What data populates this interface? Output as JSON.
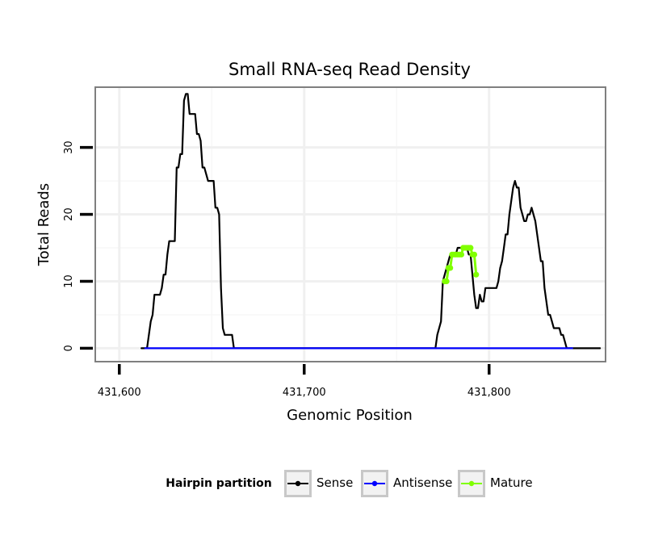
{
  "chart_data": {
    "type": "line",
    "title": "Small RNA-seq Read Density",
    "xlabel": "Genomic Position",
    "ylabel": "Total Reads",
    "xlim": [
      431587,
      431863
    ],
    "ylim": [
      -2,
      39
    ],
    "x_ticks": [
      431600,
      431700,
      431800
    ],
    "x_tick_labels": [
      "431,600",
      "431,700",
      "431,800"
    ],
    "y_ticks": [
      0,
      10,
      20,
      30
    ],
    "y_tick_labels": [
      "0",
      "10",
      "20",
      "30"
    ],
    "grid": true,
    "legend": {
      "title": "Hairpin partition",
      "position": "bottom",
      "entries": [
        {
          "label": "Sense",
          "color": "#000000"
        },
        {
          "label": "Antisense",
          "color": "#0000ff"
        },
        {
          "label": "Mature",
          "color": "#80ff00"
        }
      ]
    },
    "series": [
      {
        "name": "Sense",
        "color": "#000000",
        "x": [
          431612,
          431615,
          431616,
          431617,
          431618,
          431619,
          431620,
          431621,
          431622,
          431623,
          431624,
          431625,
          431626,
          431627,
          431628,
          431629,
          431630,
          431631,
          431632,
          431633,
          431634,
          431635,
          431636,
          431637,
          431638,
          431639,
          431640,
          431641,
          431642,
          431643,
          431644,
          431645,
          431646,
          431647,
          431648,
          431649,
          431650,
          431651,
          431652,
          431653,
          431654,
          431655,
          431656,
          431657,
          431658,
          431659,
          431660,
          431661,
          431662,
          431700,
          431771,
          431772,
          431773,
          431774,
          431775,
          431776,
          431777,
          431778,
          431779,
          431780,
          431781,
          431782,
          431783,
          431784,
          431785,
          431786,
          431787,
          431788,
          431789,
          431790,
          431791,
          431792,
          431793,
          431794,
          431795,
          431796,
          431797,
          431798,
          431799,
          431800,
          431801,
          431802,
          431803,
          431804,
          431805,
          431806,
          431807,
          431808,
          431809,
          431810,
          431811,
          431812,
          431813,
          431814,
          431815,
          431816,
          431817,
          431818,
          431819,
          431820,
          431821,
          431822,
          431823,
          431824,
          431825,
          431826,
          431827,
          431828,
          431829,
          431830,
          431831,
          431832,
          431833,
          431834,
          431835,
          431836,
          431837,
          431838,
          431839,
          431840,
          431841,
          431842,
          431843,
          431844,
          431845,
          431846,
          431860
        ],
        "values": [
          0,
          0,
          2,
          4,
          5,
          8,
          8,
          8,
          8,
          9,
          11,
          11,
          14,
          16,
          16,
          16,
          16,
          27,
          27,
          29,
          29,
          37,
          38,
          38,
          35,
          35,
          35,
          35,
          32,
          32,
          31,
          27,
          27,
          26,
          25,
          25,
          25,
          25,
          21,
          21,
          20,
          9,
          3,
          2,
          2,
          2,
          2,
          2,
          0,
          0,
          0,
          2,
          3,
          4,
          10,
          11,
          12,
          13,
          14,
          14,
          14,
          14,
          15,
          15,
          15,
          15,
          15,
          15,
          14,
          14,
          11,
          8,
          6,
          6,
          8,
          7,
          7,
          9,
          9,
          9,
          9,
          9,
          9,
          9,
          10,
          12,
          13,
          15,
          17,
          17,
          20,
          22,
          24,
          25,
          24,
          24,
          21,
          20,
          19,
          19,
          20,
          20,
          21,
          20,
          19,
          17,
          15,
          13,
          13,
          9,
          7,
          5,
          5,
          4,
          3,
          3,
          3,
          3,
          2,
          2,
          1,
          0,
          0,
          0,
          0,
          0,
          0
        ]
      },
      {
        "name": "Antisense",
        "color": "#0000ff",
        "x": [
          431614,
          431662,
          431771,
          431845
        ],
        "values": [
          0,
          0,
          0,
          0
        ]
      },
      {
        "name": "Mature",
        "color": "#80ff00",
        "x": [
          431776,
          431777,
          431778,
          431779,
          431780,
          431781,
          431782,
          431783,
          431784,
          431785,
          431786,
          431787,
          431788,
          431789,
          431790,
          431791,
          431792,
          431793
        ],
        "values": [
          10,
          10,
          12,
          12,
          14,
          14,
          14,
          14,
          14,
          14,
          15,
          15,
          15,
          15,
          15,
          14,
          14,
          11
        ],
        "markers": true
      }
    ]
  }
}
